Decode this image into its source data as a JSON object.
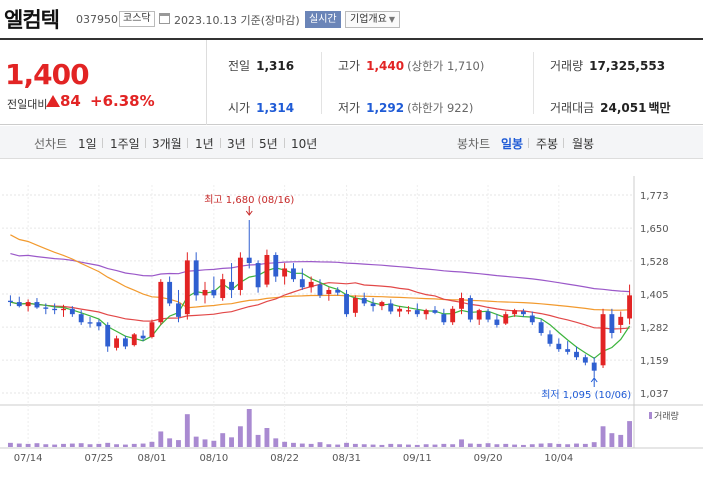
{
  "header": {
    "name": "엘컴텍",
    "code": "037950",
    "market": "코스닥",
    "date": "2023.10.13 기준(장마감)",
    "realtime": "실시간",
    "company_info": "기업개요"
  },
  "price": {
    "current": "1,400",
    "change_label": "전일대비",
    "change_amount": "84",
    "change_percent": "+6.38%",
    "prev_close_label": "전일",
    "prev_close": "1,316",
    "open_label": "시가",
    "open": "1,314",
    "high_label": "고가",
    "high": "1,440",
    "upper_limit": "(상한가 1,710)",
    "low_label": "저가",
    "low": "1,292",
    "lower_limit": "(하한가 922)",
    "volume_label": "거래량",
    "volume": "17,325,553",
    "amount_label": "거래대금",
    "amount": "24,051",
    "amount_unit": "백만"
  },
  "toolbar": {
    "line_label": "선차트",
    "periods": [
      "1일",
      "1주일",
      "3개월",
      "1년",
      "3년",
      "5년",
      "10년"
    ],
    "candle_label": "봉차트",
    "candle_periods": [
      "일봉",
      "주봉",
      "월봉"
    ],
    "active_candle": "일봉"
  },
  "colors": {
    "up": "#e22424",
    "down": "#2f5fd0",
    "ma5": "#3cb43c",
    "ma20": "#e24848",
    "ma60": "#f29a2e",
    "ma120": "#9b59c9"
  },
  "chart_data": {
    "type": "candlestick",
    "legend": [
      "5",
      "20",
      "60",
      "120"
    ],
    "y_ticks": [
      1773,
      1650,
      1528,
      1405,
      1282,
      1159,
      1037
    ],
    "ylim": [
      1037,
      1773
    ],
    "x_ticks": [
      "07/14",
      "07/25",
      "08/01",
      "08/10",
      "08/22",
      "08/31",
      "09/11",
      "09/20",
      "10/04"
    ],
    "high_annotation": "최고 1,680 (08/16)",
    "low_annotation": "최저 1,095 (10/06)",
    "volume_label": "거래량",
    "candles": [
      [
        1380,
        1400,
        1360,
        1375
      ],
      [
        1375,
        1395,
        1355,
        1360
      ],
      [
        1360,
        1385,
        1340,
        1375
      ],
      [
        1375,
        1390,
        1350,
        1355
      ],
      [
        1355,
        1370,
        1330,
        1350
      ],
      [
        1350,
        1370,
        1330,
        1345
      ],
      [
        1345,
        1365,
        1320,
        1350
      ],
      [
        1350,
        1360,
        1320,
        1330
      ],
      [
        1330,
        1345,
        1290,
        1300
      ],
      [
        1300,
        1320,
        1280,
        1295
      ],
      [
        1300,
        1310,
        1270,
        1285
      ],
      [
        1290,
        1300,
        1190,
        1210
      ],
      [
        1205,
        1250,
        1195,
        1240
      ],
      [
        1240,
        1250,
        1200,
        1210
      ],
      [
        1215,
        1260,
        1210,
        1255
      ],
      [
        1250,
        1270,
        1230,
        1240
      ],
      [
        1245,
        1310,
        1240,
        1300
      ],
      [
        1300,
        1460,
        1290,
        1450
      ],
      [
        1450,
        1470,
        1360,
        1370
      ],
      [
        1370,
        1420,
        1300,
        1320
      ],
      [
        1330,
        1560,
        1310,
        1530
      ],
      [
        1530,
        1560,
        1380,
        1400
      ],
      [
        1400,
        1450,
        1370,
        1420
      ],
      [
        1420,
        1470,
        1390,
        1400
      ],
      [
        1390,
        1480,
        1380,
        1460
      ],
      [
        1450,
        1520,
        1390,
        1420
      ],
      [
        1420,
        1560,
        1400,
        1540
      ],
      [
        1540,
        1680,
        1500,
        1520
      ],
      [
        1520,
        1530,
        1410,
        1430
      ],
      [
        1440,
        1570,
        1430,
        1550
      ],
      [
        1550,
        1560,
        1450,
        1470
      ],
      [
        1470,
        1520,
        1440,
        1500
      ],
      [
        1500,
        1520,
        1450,
        1460
      ],
      [
        1460,
        1500,
        1420,
        1430
      ],
      [
        1430,
        1470,
        1410,
        1450
      ],
      [
        1440,
        1460,
        1390,
        1400
      ],
      [
        1405,
        1430,
        1380,
        1420
      ],
      [
        1420,
        1430,
        1400,
        1410
      ],
      [
        1405,
        1420,
        1320,
        1330
      ],
      [
        1335,
        1400,
        1320,
        1390
      ],
      [
        1390,
        1410,
        1360,
        1370
      ],
      [
        1370,
        1390,
        1340,
        1360
      ],
      [
        1360,
        1380,
        1345,
        1375
      ],
      [
        1370,
        1385,
        1330,
        1340
      ],
      [
        1340,
        1360,
        1320,
        1350
      ],
      [
        1340,
        1360,
        1330,
        1345
      ],
      [
        1345,
        1370,
        1320,
        1330
      ],
      [
        1330,
        1350,
        1310,
        1345
      ],
      [
        1345,
        1360,
        1330,
        1335
      ],
      [
        1330,
        1350,
        1290,
        1300
      ],
      [
        1300,
        1360,
        1290,
        1350
      ],
      [
        1350,
        1410,
        1330,
        1390
      ],
      [
        1390,
        1400,
        1300,
        1310
      ],
      [
        1310,
        1350,
        1290,
        1345
      ],
      [
        1340,
        1350,
        1300,
        1310
      ],
      [
        1310,
        1330,
        1280,
        1290
      ],
      [
        1295,
        1340,
        1290,
        1330
      ],
      [
        1330,
        1350,
        1320,
        1345
      ],
      [
        1340,
        1350,
        1320,
        1330
      ],
      [
        1325,
        1340,
        1290,
        1300
      ],
      [
        1300,
        1310,
        1250,
        1260
      ],
      [
        1255,
        1270,
        1210,
        1220
      ],
      [
        1220,
        1240,
        1190,
        1200
      ],
      [
        1200,
        1230,
        1180,
        1190
      ],
      [
        1190,
        1210,
        1160,
        1170
      ],
      [
        1170,
        1180,
        1140,
        1150
      ],
      [
        1150,
        1170,
        1095,
        1120
      ],
      [
        1140,
        1350,
        1130,
        1330
      ],
      [
        1330,
        1350,
        1240,
        1260
      ],
      [
        1290,
        1340,
        1260,
        1320
      ],
      [
        1314,
        1440,
        1292,
        1400
      ]
    ],
    "volumes": [
      12,
      10,
      9,
      11,
      8,
      7,
      9,
      10,
      11,
      8,
      9,
      12,
      8,
      7,
      9,
      10,
      15,
      45,
      25,
      20,
      95,
      30,
      22,
      18,
      40,
      28,
      60,
      110,
      35,
      55,
      25,
      15,
      12,
      10,
      9,
      14,
      8,
      7,
      12,
      9,
      8,
      7,
      6,
      9,
      8,
      7,
      6,
      8,
      7,
      9,
      8,
      22,
      10,
      9,
      11,
      8,
      9,
      7,
      6,
      8,
      10,
      11,
      9,
      8,
      10,
      9,
      14,
      60,
      40,
      35,
      75
    ]
  }
}
